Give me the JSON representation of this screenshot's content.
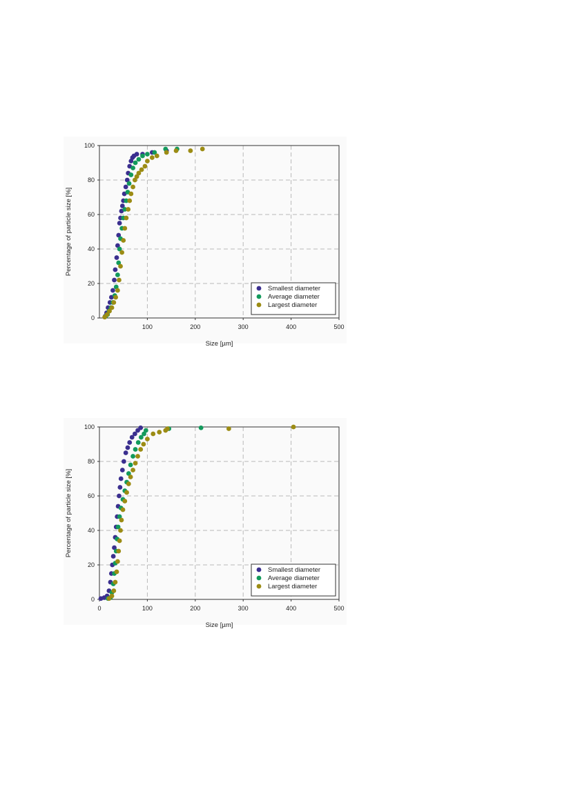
{
  "chart_data": [
    {
      "type": "scatter",
      "xlabel": "Size [µm]",
      "ylabel": "Percentage of particle size [%]",
      "xlim": [
        0,
        500
      ],
      "ylim": [
        0,
        100
      ],
      "xticks": [
        100,
        200,
        300,
        400,
        500
      ],
      "yticks": [
        0,
        20,
        40,
        60,
        80,
        100
      ],
      "grid": true,
      "legend_position": "bottom-right",
      "series": [
        {
          "name": "Smallest diameter",
          "color": "#3b2f8f",
          "points": [
            [
              12,
              1
            ],
            [
              15,
              3
            ],
            [
              18,
              6
            ],
            [
              22,
              9
            ],
            [
              25,
              12
            ],
            [
              28,
              16
            ],
            [
              31,
              22
            ],
            [
              33,
              28
            ],
            [
              36,
              35
            ],
            [
              38,
              42
            ],
            [
              40,
              48
            ],
            [
              42,
              55
            ],
            [
              44,
              58
            ],
            [
              46,
              62
            ],
            [
              48,
              65
            ],
            [
              50,
              68
            ],
            [
              52,
              72
            ],
            [
              55,
              76
            ],
            [
              58,
              80
            ],
            [
              60,
              84
            ],
            [
              63,
              88
            ],
            [
              66,
              91
            ],
            [
              69,
              93
            ],
            [
              72,
              94
            ],
            [
              78,
              95
            ],
            [
              90,
              95
            ],
            [
              110,
              96
            ],
            [
              140,
              97
            ]
          ]
        },
        {
          "name": "Average diameter",
          "color": "#139a5c",
          "points": [
            [
              13,
              1
            ],
            [
              17,
              2
            ],
            [
              20,
              4
            ],
            [
              24,
              6
            ],
            [
              28,
              9
            ],
            [
              32,
              13
            ],
            [
              35,
              18
            ],
            [
              38,
              25
            ],
            [
              40,
              32
            ],
            [
              42,
              40
            ],
            [
              44,
              46
            ],
            [
              47,
              52
            ],
            [
              50,
              58
            ],
            [
              53,
              63
            ],
            [
              56,
              68
            ],
            [
              59,
              73
            ],
            [
              62,
              78
            ],
            [
              66,
              83
            ],
            [
              70,
              87
            ],
            [
              75,
              90
            ],
            [
              82,
              92
            ],
            [
              90,
              94
            ],
            [
              100,
              95
            ],
            [
              115,
              96
            ],
            [
              138,
              98
            ],
            [
              162,
              98
            ]
          ]
        },
        {
          "name": "Largest diameter",
          "color": "#9c8c14",
          "points": [
            [
              11,
              0.5
            ],
            [
              16,
              2
            ],
            [
              21,
              4
            ],
            [
              26,
              6
            ],
            [
              30,
              9
            ],
            [
              34,
              12
            ],
            [
              38,
              16
            ],
            [
              41,
              22
            ],
            [
              44,
              30
            ],
            [
              47,
              38
            ],
            [
              50,
              45
            ],
            [
              53,
              52
            ],
            [
              56,
              58
            ],
            [
              60,
              63
            ],
            [
              63,
              68
            ],
            [
              66,
              72
            ],
            [
              70,
              76
            ],
            [
              74,
              80
            ],
            [
              78,
              82
            ],
            [
              82,
              84
            ],
            [
              88,
              86
            ],
            [
              95,
              88
            ],
            [
              100,
              91
            ],
            [
              110,
              93
            ],
            [
              120,
              94
            ],
            [
              140,
              96
            ],
            [
              160,
              97
            ],
            [
              190,
              97
            ],
            [
              215,
              98
            ]
          ]
        }
      ]
    },
    {
      "type": "scatter",
      "xlabel": "Size [µm]",
      "ylabel": "Percentage of particle size [%]",
      "xlim": [
        0,
        500
      ],
      "ylim": [
        0,
        100
      ],
      "xticks": [
        0,
        100,
        200,
        300,
        400,
        500
      ],
      "yticks": [
        0,
        20,
        40,
        60,
        80,
        100
      ],
      "grid": true,
      "legend_position": "bottom-right",
      "series": [
        {
          "name": "Smallest diameter",
          "color": "#3b2f8f",
          "points": [
            [
              3,
              0.5
            ],
            [
              10,
              1
            ],
            [
              16,
              2
            ],
            [
              20,
              5
            ],
            [
              23,
              10
            ],
            [
              25,
              15
            ],
            [
              27,
              20
            ],
            [
              29,
              25
            ],
            [
              31,
              30
            ],
            [
              33,
              36
            ],
            [
              35,
              42
            ],
            [
              37,
              48
            ],
            [
              39,
              54
            ],
            [
              41,
              60
            ],
            [
              43,
              65
            ],
            [
              45,
              70
            ],
            [
              48,
              75
            ],
            [
              51,
              80
            ],
            [
              55,
              85
            ],
            [
              59,
              88
            ],
            [
              63,
              91
            ],
            [
              68,
              94
            ],
            [
              74,
              96
            ],
            [
              80,
              98
            ],
            [
              86,
              99.5
            ]
          ]
        },
        {
          "name": "Average diameter",
          "color": "#139a5c",
          "points": [
            [
              18,
              0.5
            ],
            [
              23,
              1
            ],
            [
              26,
              4
            ],
            [
              29,
              9
            ],
            [
              31,
              15
            ],
            [
              33,
              21
            ],
            [
              35,
              28
            ],
            [
              37,
              35
            ],
            [
              39,
              42
            ],
            [
              42,
              48
            ],
            [
              45,
              53
            ],
            [
              49,
              58
            ],
            [
              53,
              63
            ],
            [
              57,
              68
            ],
            [
              61,
              73
            ],
            [
              65,
              78
            ],
            [
              70,
              83
            ],
            [
              75,
              87
            ],
            [
              81,
              91
            ],
            [
              87,
              94
            ],
            [
              93,
              96
            ],
            [
              97,
              98
            ],
            [
              145,
              99
            ],
            [
              212,
              99.5
            ]
          ]
        },
        {
          "name": "Largest diameter",
          "color": "#9c8c14",
          "points": [
            [
              20,
              0.5
            ],
            [
              26,
              2
            ],
            [
              30,
              5
            ],
            [
              33,
              10
            ],
            [
              36,
              16
            ],
            [
              38,
              22
            ],
            [
              40,
              28
            ],
            [
              42,
              34
            ],
            [
              44,
              40
            ],
            [
              46,
              46
            ],
            [
              49,
              52
            ],
            [
              53,
              57
            ],
            [
              57,
              62
            ],
            [
              61,
              67
            ],
            [
              65,
              71
            ],
            [
              70,
              75
            ],
            [
              75,
              79
            ],
            [
              80,
              83
            ],
            [
              86,
              87
            ],
            [
              92,
              90
            ],
            [
              100,
              93
            ],
            [
              112,
              96
            ],
            [
              125,
              97
            ],
            [
              138,
              98
            ],
            [
              142,
              99
            ],
            [
              270,
              99
            ],
            [
              405,
              100
            ]
          ]
        }
      ]
    }
  ]
}
